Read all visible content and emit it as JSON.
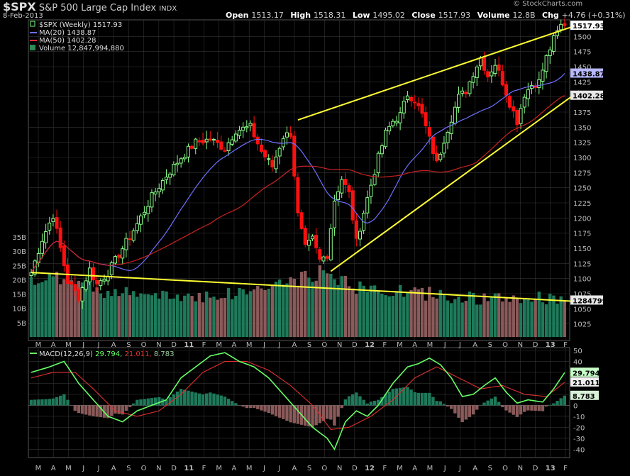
{
  "header": {
    "symbol": "$SPX",
    "name": "S&P 500 Large Cap Index",
    "exchange": "INDX",
    "date": "8-Feb-2013",
    "brand": "© StockCharts.com",
    "ohlc": [
      {
        "label": "Open",
        "value": "1513.17"
      },
      {
        "label": "High",
        "value": "1518.31"
      },
      {
        "label": "Low",
        "value": "1495.02"
      },
      {
        "label": "Close",
        "value": "1517.93"
      },
      {
        "label": "Volume",
        "value": "12.8B"
      },
      {
        "label": "Chg",
        "value": "+4.76 (+0.31%)"
      }
    ]
  },
  "legend": [
    {
      "label": "$SPX (Weekly) 1517.93",
      "color": "#ffffff",
      "icon": "candle-icon"
    },
    {
      "label": "MA(20) 1438.87",
      "color": "#6f6fff",
      "icon": "line-icon"
    },
    {
      "label": "MA(50) 1402.28",
      "color": "#e03030",
      "icon": "line-icon"
    },
    {
      "label": "Volume 12,847,994,880",
      "color": "#2e8b57",
      "icon": "bar-icon"
    }
  ],
  "macd_legend": {
    "label": "MACD(12,26,9)",
    "macd": "29.794",
    "signal": "21.011",
    "hist": "8.783",
    "colors": {
      "macd": "#66ff66",
      "signal": "#e03030",
      "hist": "#9acd9a"
    }
  },
  "colors": {
    "up": "#88ff88",
    "down": "#ff1010",
    "ma20": "#6f6fff",
    "ma50": "#cc2222",
    "volume_up": "#1e7a5a",
    "volume_down": "#8a5a5a",
    "trendline": "#ffff33",
    "grid": "#333333"
  },
  "chart_data": [
    {
      "type": "candlestick",
      "title": "$SPX (Weekly)",
      "y_ticks": [
        1025,
        1050,
        1075,
        1100,
        1125,
        1150,
        1175,
        1200,
        1225,
        1250,
        1275,
        1300,
        1325,
        1350,
        1375,
        1400,
        1425,
        1450,
        1475,
        1500
      ],
      "ylim": [
        1000,
        1525
      ],
      "x_ticks": [
        "M",
        "A",
        "M",
        "J",
        "J",
        "A",
        "S",
        "O",
        "N",
        "D",
        "11",
        "F",
        "M",
        "A",
        "M",
        "J",
        "J",
        "A",
        "S",
        "O",
        "N",
        "D",
        "12",
        "F",
        "M",
        "A",
        "M",
        "J",
        "J",
        "A",
        "S",
        "O",
        "N",
        "D",
        "13",
        "F"
      ],
      "price_keypoints": [
        [
          0,
          1110
        ],
        [
          3,
          1165
        ],
        [
          6,
          1205
        ],
        [
          8,
          1150
        ],
        [
          10,
          1095
        ],
        [
          13,
          1070
        ],
        [
          16,
          1115
        ],
        [
          18,
          1090
        ],
        [
          21,
          1110
        ],
        [
          25,
          1150
        ],
        [
          29,
          1190
        ],
        [
          33,
          1235
        ],
        [
          37,
          1270
        ],
        [
          41,
          1300
        ],
        [
          45,
          1325
        ],
        [
          49,
          1330
        ],
        [
          53,
          1315
        ],
        [
          56,
          1345
        ],
        [
          60,
          1350
        ],
        [
          63,
          1310
        ],
        [
          66,
          1285
        ],
        [
          69,
          1335
        ],
        [
          71,
          1340
        ],
        [
          73,
          1205
        ],
        [
          75,
          1150
        ],
        [
          77,
          1165
        ],
        [
          79,
          1130
        ],
        [
          81,
          1140
        ],
        [
          83,
          1230
        ],
        [
          85,
          1265
        ],
        [
          87,
          1240
        ],
        [
          89,
          1160
        ],
        [
          91,
          1210
        ],
        [
          93,
          1255
        ],
        [
          95,
          1300
        ],
        [
          97,
          1340
        ],
        [
          99,
          1360
        ],
        [
          101,
          1370
        ],
        [
          103,
          1405
        ],
        [
          105,
          1395
        ],
        [
          107,
          1370
        ],
        [
          109,
          1330
        ],
        [
          111,
          1290
        ],
        [
          113,
          1330
        ],
        [
          115,
          1365
        ],
        [
          117,
          1400
        ],
        [
          119,
          1410
        ],
        [
          121,
          1440
        ],
        [
          123,
          1465
        ],
        [
          125,
          1435
        ],
        [
          127,
          1455
        ],
        [
          129,
          1425
        ],
        [
          131,
          1390
        ],
        [
          133,
          1360
        ],
        [
          135,
          1405
        ],
        [
          137,
          1420
        ],
        [
          139,
          1425
        ],
        [
          141,
          1465
        ],
        [
          143,
          1495
        ],
        [
          145,
          1518
        ]
      ],
      "last_price": 1517.93,
      "ma20_last": 1438.87,
      "ma50_last": 1402.28,
      "volume_ticks": [
        "35B",
        "30B",
        "25B",
        "20B",
        "15B",
        "10B",
        "5B"
      ],
      "volume_last_label": "12847994880",
      "volume_keypoints": [
        [
          0,
          18
        ],
        [
          10,
          20
        ],
        [
          20,
          15
        ],
        [
          35,
          13
        ],
        [
          55,
          14
        ],
        [
          73,
          19
        ],
        [
          80,
          22
        ],
        [
          90,
          16
        ],
        [
          110,
          14
        ],
        [
          125,
          12
        ],
        [
          145,
          13
        ]
      ],
      "trendlines": [
        {
          "from": [
            82,
            1112
          ],
          "to": [
            150,
            1410
          ],
          "label": "lower rising wedge line"
        },
        {
          "from": [
            73,
            1362
          ],
          "to": [
            150,
            1520
          ],
          "label": "upper rising wedge line"
        },
        {
          "from": [
            0,
            1110
          ],
          "to": [
            150,
            1062
          ],
          "label": "volume descending line"
        }
      ]
    },
    {
      "type": "line",
      "title": "MACD(12,26,9)",
      "y_ticks": [
        50,
        40,
        30,
        20,
        10,
        0,
        -10,
        -20,
        -30,
        -40
      ],
      "ylim": [
        -45,
        50
      ],
      "macd_keypoints": [
        [
          0,
          30
        ],
        [
          5,
          35
        ],
        [
          9,
          40
        ],
        [
          13,
          20
        ],
        [
          17,
          5
        ],
        [
          21,
          -10
        ],
        [
          25,
          -15
        ],
        [
          29,
          -5
        ],
        [
          33,
          0
        ],
        [
          37,
          5
        ],
        [
          41,
          25
        ],
        [
          45,
          35
        ],
        [
          49,
          45
        ],
        [
          53,
          48
        ],
        [
          57,
          40
        ],
        [
          61,
          35
        ],
        [
          65,
          25
        ],
        [
          69,
          10
        ],
        [
          73,
          -5
        ],
        [
          77,
          -20
        ],
        [
          81,
          -30
        ],
        [
          83,
          -40
        ],
        [
          86,
          -15
        ],
        [
          89,
          -5
        ],
        [
          92,
          -10
        ],
        [
          95,
          0
        ],
        [
          99,
          20
        ],
        [
          103,
          35
        ],
        [
          106,
          38
        ],
        [
          109,
          43
        ],
        [
          112,
          37
        ],
        [
          115,
          25
        ],
        [
          118,
          8
        ],
        [
          121,
          10
        ],
        [
          124,
          18
        ],
        [
          127,
          25
        ],
        [
          130,
          12
        ],
        [
          133,
          2
        ],
        [
          136,
          5
        ],
        [
          140,
          3
        ],
        [
          143,
          15
        ],
        [
          146,
          29.8
        ]
      ],
      "signal_keypoints": [
        [
          0,
          25
        ],
        [
          6,
          30
        ],
        [
          12,
          30
        ],
        [
          17,
          15
        ],
        [
          23,
          -5
        ],
        [
          29,
          -10
        ],
        [
          35,
          -5
        ],
        [
          41,
          10
        ],
        [
          47,
          30
        ],
        [
          53,
          40
        ],
        [
          59,
          40
        ],
        [
          65,
          32
        ],
        [
          71,
          18
        ],
        [
          77,
          0
        ],
        [
          82,
          -22
        ],
        [
          87,
          -20
        ],
        [
          93,
          -10
        ],
        [
          99,
          5
        ],
        [
          105,
          25
        ],
        [
          111,
          35
        ],
        [
          117,
          25
        ],
        [
          123,
          15
        ],
        [
          129,
          18
        ],
        [
          135,
          10
        ],
        [
          141,
          8
        ],
        [
          146,
          21
        ]
      ],
      "hist_last": 8.783
    }
  ]
}
